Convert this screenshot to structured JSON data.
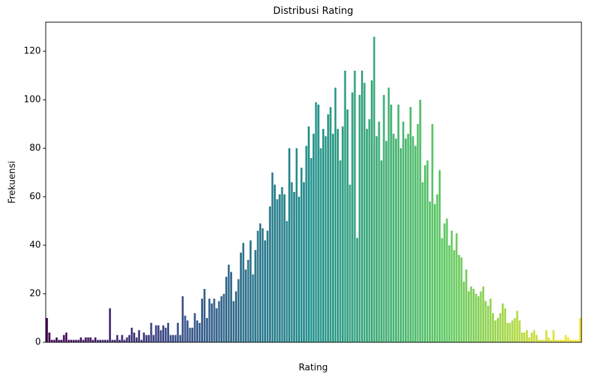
{
  "chart_data": {
    "type": "bar",
    "title": "Distribusi Rating",
    "xlabel": "Rating",
    "ylabel": "Frekuensi",
    "values": [
      10,
      4,
      1,
      1,
      2,
      1,
      1,
      3,
      4,
      1,
      1,
      1,
      1,
      1,
      2,
      1,
      2,
      2,
      2,
      1,
      2,
      1,
      1,
      1,
      1,
      1,
      14,
      1,
      1,
      3,
      1,
      3,
      1,
      2,
      3,
      6,
      4,
      2,
      5,
      1,
      4,
      3,
      3,
      8,
      3,
      7,
      7,
      5,
      7,
      6,
      8,
      3,
      3,
      3,
      8,
      3,
      19,
      11,
      9,
      6,
      6,
      12,
      9,
      8,
      18,
      22,
      10,
      18,
      16,
      18,
      14,
      17,
      19,
      20,
      27,
      32,
      29,
      17,
      21,
      26,
      37,
      41,
      30,
      34,
      42,
      28,
      38,
      46,
      49,
      47,
      42,
      46,
      56,
      70,
      65,
      59,
      61,
      64,
      61,
      50,
      80,
      66,
      62,
      80,
      60,
      72,
      66,
      81,
      89,
      76,
      86,
      99,
      98,
      80,
      88,
      85,
      94,
      97,
      86,
      105,
      88,
      75,
      89,
      112,
      96,
      65,
      103,
      112,
      43,
      102,
      112,
      107,
      88,
      92,
      108,
      126,
      85,
      91,
      75,
      102,
      83,
      105,
      98,
      86,
      84,
      98,
      80,
      91,
      84,
      86,
      97,
      85,
      81,
      90,
      100,
      66,
      73,
      75,
      58,
      90,
      57,
      61,
      71,
      43,
      49,
      51,
      40,
      46,
      38,
      45,
      36,
      35,
      25,
      30,
      21,
      23,
      22,
      20,
      19,
      21,
      23,
      17,
      15,
      18,
      12,
      9,
      10,
      12,
      16,
      14,
      8,
      8,
      9,
      10,
      13,
      9,
      4,
      4,
      5,
      2,
      4,
      5,
      3,
      1,
      1,
      1,
      5,
      2,
      1,
      5,
      1,
      1,
      1,
      1,
      3,
      2,
      1,
      1,
      1,
      1,
      10
    ],
    "palette": [
      "#440154",
      "#3b528b",
      "#21918c",
      "#5ec962",
      "#fde725"
    ],
    "ylim": [
      0,
      132
    ],
    "yticks": [
      0,
      20,
      40,
      60,
      80,
      100,
      120
    ]
  }
}
